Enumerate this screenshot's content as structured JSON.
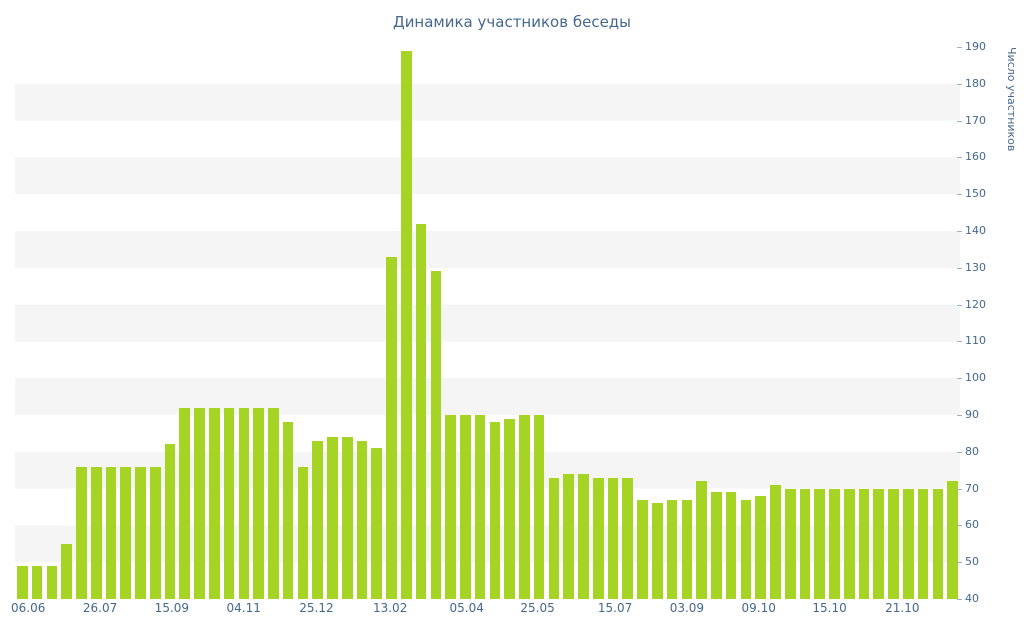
{
  "chart_data": {
    "type": "bar",
    "title": "Динамика участников беседы",
    "ylabel": "Число участников",
    "ylim": [
      40,
      190
    ],
    "ytick_step": 10,
    "grid": "banded-horizontal-stripes",
    "legend": "none",
    "x_tick_labels": [
      "06.06",
      "26.07",
      "15.09",
      "04.11",
      "25.12",
      "13.02",
      "05.04",
      "25.05",
      "15.07",
      "03.09",
      "09.10",
      "15.10",
      "21.10"
    ],
    "x_tick_positions_pct": [
      1.4,
      9.0,
      16.6,
      24.2,
      31.9,
      39.7,
      47.8,
      55.3,
      63.5,
      71.1,
      78.7,
      86.2,
      93.9
    ],
    "values": [
      49,
      49,
      49,
      55,
      76,
      76,
      76,
      76,
      76,
      76,
      82,
      92,
      92,
      92,
      92,
      92,
      92,
      92,
      88,
      76,
      83,
      84,
      84,
      83,
      81,
      133,
      189,
      142,
      129,
      90,
      90,
      90,
      88,
      89,
      90,
      90,
      73,
      74,
      74,
      73,
      73,
      73,
      67,
      66,
      67,
      67,
      72,
      69,
      69,
      67,
      68,
      71,
      70,
      70,
      70,
      70,
      70,
      70,
      70,
      70,
      70,
      70,
      70,
      72
    ],
    "colors": {
      "bar": "#a6d425",
      "stripe": "#f5f5f5",
      "background": "#ffffff",
      "title_text": "#45688e",
      "axis_text": "#45688e"
    }
  }
}
